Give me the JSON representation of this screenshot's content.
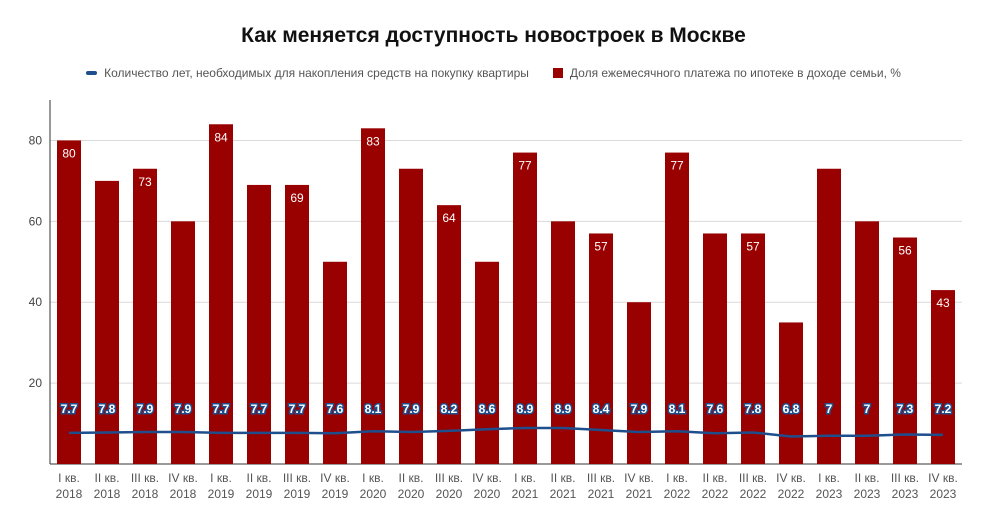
{
  "title": "Как меняется доступность новостроек в Москве",
  "colors": {
    "bar": "#990000",
    "line": "#1f4e8c",
    "grid": "#d9d9d9",
    "axis": "#333333"
  },
  "legend": {
    "line_label": "Количество лет, необходимых для накопления средств на покупку квартиры",
    "bar_label": "Доля ежемесячного платежа по ипотеке в доходе семьи, %"
  },
  "chart_data": {
    "type": "bar",
    "categories": [
      [
        "I кв.",
        "2018"
      ],
      [
        "II кв.",
        "2018"
      ],
      [
        "III кв.",
        "2018"
      ],
      [
        "IV кв.",
        "2018"
      ],
      [
        "I кв.",
        "2019"
      ],
      [
        "II кв.",
        "2019"
      ],
      [
        "III кв.",
        "2019"
      ],
      [
        "IV кв.",
        "2019"
      ],
      [
        "I кв.",
        "2020"
      ],
      [
        "II кв.",
        "2020"
      ],
      [
        "III кв.",
        "2020"
      ],
      [
        "IV кв.",
        "2020"
      ],
      [
        "I кв.",
        "2021"
      ],
      [
        "II кв.",
        "2021"
      ],
      [
        "III кв.",
        "2021"
      ],
      [
        "IV кв.",
        "2021"
      ],
      [
        "I кв.",
        "2022"
      ],
      [
        "II кв.",
        "2022"
      ],
      [
        "III кв.",
        "2022"
      ],
      [
        "IV кв.",
        "2022"
      ],
      [
        "I кв.",
        "2023"
      ],
      [
        "II кв.",
        "2023"
      ],
      [
        "III кв.",
        "2023"
      ],
      [
        "IV кв.",
        "2023"
      ]
    ],
    "series": [
      {
        "name": "Доля ежемесячного платежа по ипотеке в доходе семьи, %",
        "type": "bar",
        "values": [
          80,
          70,
          73,
          60,
          84,
          69,
          69,
          50,
          83,
          73,
          64,
          50,
          77,
          60,
          57,
          40,
          77,
          57,
          57,
          35,
          73,
          60,
          56,
          43
        ],
        "labels": [
          "80",
          "",
          "73",
          "",
          "84",
          "",
          "69",
          "",
          "83",
          "",
          "64",
          "",
          "77",
          "",
          "57",
          "",
          "77",
          "",
          "57",
          "",
          "",
          "",
          "56",
          "43"
        ]
      },
      {
        "name": "Количество лет, необходимых для накопления средств на покупку квартиры",
        "type": "line",
        "values": [
          7.7,
          7.8,
          7.9,
          7.9,
          7.7,
          7.7,
          7.7,
          7.6,
          8.1,
          7.9,
          8.2,
          8.6,
          8.9,
          8.9,
          8.4,
          7.9,
          8.1,
          7.6,
          7.8,
          6.8,
          7,
          7,
          7.3,
          7.2
        ],
        "labels": [
          "7.7",
          "7.8",
          "7.9",
          "7.9",
          "7.7",
          "7.7",
          "7.7",
          "7.6",
          "8.1",
          "7.9",
          "8.2",
          "8.6",
          "8.9",
          "8.9",
          "8.4",
          "7.9",
          "8.1",
          "7.6",
          "7.8",
          "6.8",
          "7",
          "7",
          "7.3",
          "7.2"
        ]
      }
    ],
    "y_ticks": [
      "20",
      "40",
      "60",
      "80"
    ],
    "ylim": [
      0,
      90
    ],
    "grid": true,
    "legend_position": "top"
  }
}
